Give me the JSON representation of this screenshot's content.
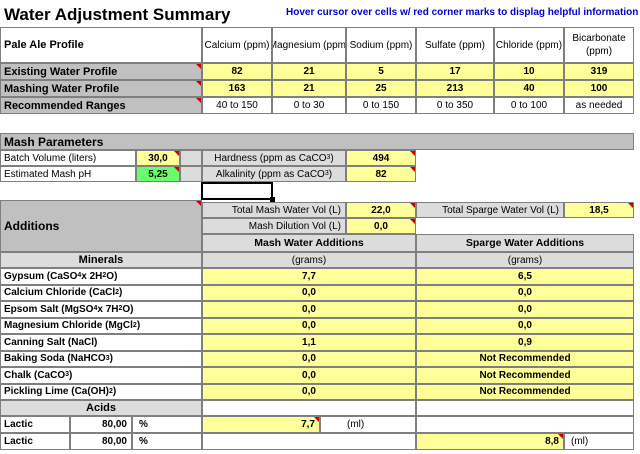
{
  "title": "Water Adjustment Summary",
  "hint": "Hover cursor over cells w/ red corner marks to displag helpful information",
  "profile": {
    "name": "Pale Ale Profile",
    "columns": [
      "Calcium (ppm)",
      "Magnesium (ppm)",
      "Sodium (ppm)",
      "Sulfate (ppm)",
      "Chloride (ppm)",
      "Bicarbonate (ppm)"
    ],
    "rows": [
      {
        "label": "Existing Water Profile",
        "values": [
          "82",
          "21",
          "5",
          "17",
          "10",
          "319"
        ]
      },
      {
        "label": "Mashing Water Profile",
        "values": [
          "163",
          "21",
          "25",
          "213",
          "40",
          "100"
        ]
      },
      {
        "label": "Recommended Ranges",
        "values": [
          "40 to 150",
          "0 to 30",
          "0 to 150",
          "0 to 350",
          "0 to 100",
          "as needed"
        ]
      }
    ]
  },
  "mash": {
    "header": "Mash Parameters",
    "batch_label": "Batch Volume (liters)",
    "batch_value": "30,0",
    "ph_label": "Estimated Mash pH",
    "ph_value": "5,25",
    "hardness_label": "Hardness (ppm as CaCO",
    "hardness_value": "494",
    "alkalinity_label": "Alkalinity (ppm as CaCO",
    "alkalinity_value": "82",
    "caco3_sub": "3",
    "close_paren": ")"
  },
  "additions": {
    "header": "Additions",
    "total_mash_label": "Total Mash Water Vol (L)",
    "total_mash_value": "22,0",
    "total_sparge_label": "Total Sparge Water Vol (L)",
    "total_sparge_value": "18,5",
    "dilution_label": "Mash Dilution Vol (L)",
    "dilution_value": "0,0",
    "mash_col": "Mash Water Additions",
    "sparge_col": "Sparge Water Additions",
    "minerals_header": "Minerals",
    "grams": "(grams)",
    "minerals": [
      {
        "name": "Gypsum (CaSO",
        "s1": "4",
        "mid": " x 2H",
        "s2": "2",
        "end": "O)",
        "mash": "7,7",
        "sparge": "6,5"
      },
      {
        "name": "Calcium Chloride (CaCl",
        "s1": "2",
        "mid": ")",
        "s2": "",
        "end": "",
        "mash": "0,0",
        "sparge": "0,0"
      },
      {
        "name": "Epsom Salt (MgSO",
        "s1": "4",
        "mid": " x 7H",
        "s2": "2",
        "end": "O)",
        "mash": "0,0",
        "sparge": "0,0"
      },
      {
        "name": "Magnesium Chloride (MgCl",
        "s1": "2",
        "mid": ")",
        "s2": "",
        "end": "",
        "mash": "0,0",
        "sparge": "0,0"
      },
      {
        "name": "Canning Salt (NaCl)",
        "s1": "",
        "mid": "",
        "s2": "",
        "end": "",
        "mash": "1,1",
        "sparge": "0,9"
      },
      {
        "name": "Baking Soda (NaHCO",
        "s1": "3",
        "mid": ")",
        "s2": "",
        "end": "",
        "mash": "0,0",
        "sparge": "Not Recommended"
      },
      {
        "name": "Chalk (CaCO",
        "s1": "3",
        "mid": ")",
        "s2": "",
        "end": "",
        "mash": "0,0",
        "sparge": "Not Recommended"
      },
      {
        "name": "Pickling Lime (Ca(OH)",
        "s1": "2",
        "mid": ")",
        "s2": "",
        "end": "",
        "mash": "0,0",
        "sparge": "Not Recommended"
      }
    ],
    "acids_header": "Acids",
    "acids": [
      {
        "name": "Lactic",
        "pct": "80,00",
        "unit": "%",
        "mash": "7,7",
        "ml": "(ml)"
      },
      {
        "name": "Lactic",
        "pct": "80,00",
        "unit": "%",
        "sparge": "8,8",
        "ml": "(ml)"
      }
    ]
  }
}
